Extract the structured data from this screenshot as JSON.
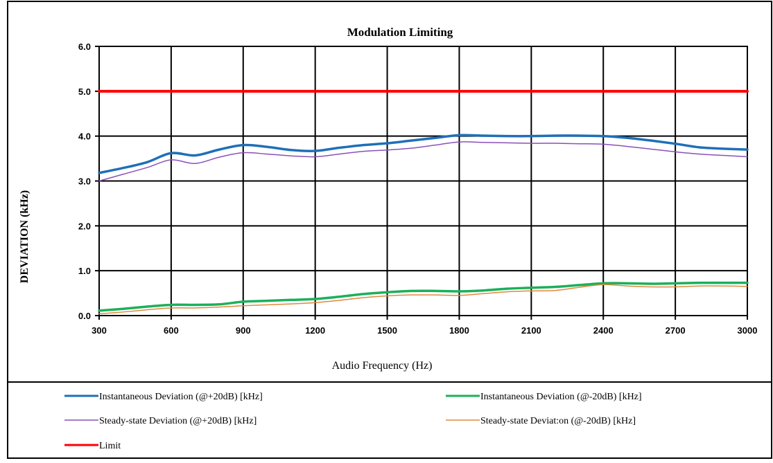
{
  "chart_data": {
    "type": "line",
    "title": "Modulation Limiting",
    "xlabel": "Audio Frequency (Hz)",
    "ylabel": "DEVIATION (kHz)",
    "xlim": [
      300,
      3000
    ],
    "ylim": [
      0,
      6
    ],
    "x_ticks": [
      "300",
      "600",
      "900",
      "1200",
      "1500",
      "1800",
      "2100",
      "2400",
      "2700",
      "3000"
    ],
    "y_ticks": [
      "0.0",
      "1.0",
      "2.0",
      "3.0",
      "4.0",
      "5.0",
      "6.0"
    ],
    "grid": true,
    "legend_position": "bottom",
    "series": [
      {
        "name": "Instantaneous Deviation (@+20dB) [kHz]",
        "color": "#1f6fb8",
        "x": [
          300,
          400,
          500,
          600,
          700,
          800,
          900,
          1000,
          1100,
          1200,
          1300,
          1400,
          1500,
          1600,
          1700,
          1800,
          1900,
          2000,
          2100,
          2200,
          2300,
          2400,
          2500,
          2600,
          2700,
          2800,
          2900,
          3000
        ],
        "values": [
          3.18,
          3.29,
          3.42,
          3.62,
          3.57,
          3.7,
          3.8,
          3.76,
          3.69,
          3.67,
          3.74,
          3.8,
          3.84,
          3.9,
          3.96,
          4.02,
          4.01,
          4.0,
          4.0,
          4.01,
          4.01,
          4.0,
          3.96,
          3.9,
          3.83,
          3.75,
          3.72,
          3.7
        ]
      },
      {
        "name": "Instantaneous Deviation (@-20dB) [kHz]",
        "color": "#1bb05a",
        "x": [
          300,
          400,
          500,
          600,
          700,
          800,
          900,
          1000,
          1100,
          1200,
          1300,
          1400,
          1500,
          1600,
          1700,
          1800,
          1900,
          2000,
          2100,
          2200,
          2300,
          2400,
          2500,
          2600,
          2700,
          2800,
          2900,
          3000
        ],
        "values": [
          0.11,
          0.15,
          0.2,
          0.24,
          0.24,
          0.25,
          0.31,
          0.33,
          0.35,
          0.37,
          0.42,
          0.48,
          0.52,
          0.55,
          0.55,
          0.54,
          0.56,
          0.6,
          0.62,
          0.64,
          0.68,
          0.72,
          0.72,
          0.71,
          0.72,
          0.73,
          0.73,
          0.73
        ]
      },
      {
        "name": "Steady-state Deviation (@+20dB) [kHz]",
        "color": "#8a4fb8",
        "x": [
          300,
          400,
          500,
          600,
          700,
          800,
          900,
          1000,
          1100,
          1200,
          1300,
          1400,
          1500,
          1600,
          1700,
          1800,
          1900,
          2000,
          2100,
          2200,
          2300,
          2400,
          2500,
          2600,
          2700,
          2800,
          2900,
          3000
        ],
        "values": [
          3.0,
          3.15,
          3.3,
          3.47,
          3.39,
          3.53,
          3.63,
          3.6,
          3.56,
          3.54,
          3.6,
          3.66,
          3.69,
          3.73,
          3.8,
          3.87,
          3.86,
          3.85,
          3.84,
          3.84,
          3.83,
          3.82,
          3.77,
          3.71,
          3.65,
          3.6,
          3.57,
          3.54
        ]
      },
      {
        "name": "Steady-state Deviat:on (@-20dB) [kHz]",
        "color": "#e0893a",
        "x": [
          300,
          400,
          500,
          600,
          700,
          800,
          900,
          1000,
          1100,
          1200,
          1300,
          1400,
          1500,
          1600,
          1700,
          1800,
          1900,
          2000,
          2100,
          2200,
          2300,
          2400,
          2500,
          2600,
          2700,
          2800,
          2900,
          3000
        ],
        "values": [
          0.04,
          0.08,
          0.13,
          0.17,
          0.17,
          0.19,
          0.22,
          0.24,
          0.26,
          0.29,
          0.34,
          0.4,
          0.44,
          0.46,
          0.46,
          0.45,
          0.49,
          0.53,
          0.55,
          0.56,
          0.63,
          0.69,
          0.66,
          0.64,
          0.64,
          0.66,
          0.66,
          0.65
        ]
      },
      {
        "name": "Limit",
        "color": "#ff0000",
        "x": [
          300,
          3000
        ],
        "values": [
          5.0,
          5.0
        ]
      }
    ]
  }
}
